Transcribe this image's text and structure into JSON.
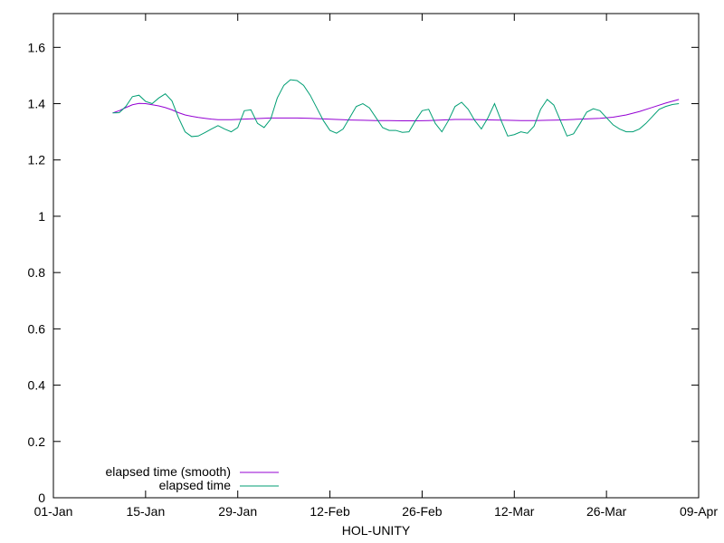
{
  "chart_data": {
    "type": "line",
    "title": "",
    "xlabel": "HOL-UNITY",
    "ylabel": "",
    "x_ticks": [
      "01-Jan",
      "15-Jan",
      "29-Jan",
      "12-Feb",
      "26-Feb",
      "12-Mar",
      "26-Mar",
      "09-Apr"
    ],
    "y_ticks": [
      "0",
      "0.2",
      "0.4",
      "0.6",
      "0.8",
      "1",
      "1.2",
      "1.4",
      "1.6"
    ],
    "ylim": [
      0,
      1.72
    ],
    "xlim": [
      "01-Jan",
      "09-Apr"
    ],
    "grid": false,
    "legend_position": "bottom-left",
    "series": [
      {
        "name": "elapsed time (smooth)",
        "color": "#9400d3",
        "x": [
          "10-Jan",
          "11-Jan",
          "12-Jan",
          "13-Jan",
          "14-Jan",
          "15-Jan",
          "16-Jan",
          "17-Jan",
          "18-Jan",
          "19-Jan",
          "20-Jan",
          "21-Jan",
          "22-Jan",
          "23-Jan",
          "24-Jan",
          "25-Jan",
          "26-Jan",
          "28-Jan",
          "30-Jan",
          "01-Feb",
          "03-Feb",
          "05-Feb",
          "07-Feb",
          "09-Feb",
          "11-Feb",
          "13-Feb",
          "15-Feb",
          "17-Feb",
          "19-Feb",
          "21-Feb",
          "23-Feb",
          "25-Feb",
          "27-Feb",
          "01-Mar",
          "03-Mar",
          "05-Mar",
          "07-Mar",
          "09-Mar",
          "11-Mar",
          "13-Mar",
          "15-Mar",
          "17-Mar",
          "19-Mar",
          "21-Mar",
          "23-Mar",
          "25-Mar",
          "27-Mar",
          "29-Mar",
          "31-Mar",
          "02-Apr",
          "04-Apr",
          "06-Apr"
        ],
        "y": [
          1.367,
          1.375,
          1.386,
          1.396,
          1.401,
          1.4,
          1.396,
          1.392,
          1.386,
          1.378,
          1.368,
          1.36,
          1.355,
          1.351,
          1.348,
          1.345,
          1.343,
          1.343,
          1.345,
          1.347,
          1.349,
          1.349,
          1.349,
          1.348,
          1.346,
          1.344,
          1.342,
          1.341,
          1.34,
          1.34,
          1.339,
          1.339,
          1.34,
          1.342,
          1.344,
          1.344,
          1.343,
          1.342,
          1.341,
          1.34,
          1.34,
          1.341,
          1.342,
          1.344,
          1.346,
          1.348,
          1.352,
          1.36,
          1.372,
          1.387,
          1.402,
          1.415
        ]
      },
      {
        "name": "elapsed time",
        "color": "#009e73",
        "x": [
          "10-Jan",
          "11-Jan",
          "12-Jan",
          "13-Jan",
          "14-Jan",
          "15-Jan",
          "16-Jan",
          "17-Jan",
          "18-Jan",
          "19-Jan",
          "20-Jan",
          "21-Jan",
          "22-Jan",
          "23-Jan",
          "24-Jan",
          "25-Jan",
          "26-Jan",
          "27-Jan",
          "28-Jan",
          "29-Jan",
          "30-Jan",
          "31-Jan",
          "01-Feb",
          "02-Feb",
          "03-Feb",
          "04-Feb",
          "05-Feb",
          "06-Feb",
          "07-Feb",
          "08-Feb",
          "09-Feb",
          "10-Feb",
          "11-Feb",
          "12-Feb",
          "13-Feb",
          "14-Feb",
          "15-Feb",
          "16-Feb",
          "17-Feb",
          "18-Feb",
          "19-Feb",
          "20-Feb",
          "21-Feb",
          "22-Feb",
          "23-Feb",
          "24-Feb",
          "25-Feb",
          "26-Feb",
          "27-Feb",
          "28-Feb",
          "01-Mar",
          "02-Mar",
          "03-Mar",
          "04-Mar",
          "05-Mar",
          "06-Mar",
          "07-Mar",
          "08-Mar",
          "09-Mar",
          "10-Mar",
          "11-Mar",
          "12-Mar",
          "13-Mar",
          "14-Mar",
          "15-Mar",
          "16-Mar",
          "17-Mar",
          "18-Mar",
          "19-Mar",
          "20-Mar",
          "21-Mar",
          "22-Mar",
          "23-Mar",
          "24-Mar",
          "25-Mar",
          "26-Mar",
          "27-Mar",
          "28-Mar",
          "29-Mar",
          "30-Mar",
          "31-Mar",
          "01-Apr",
          "02-Apr",
          "03-Apr",
          "04-Apr",
          "05-Apr",
          "06-Apr"
        ],
        "y": [
          1.367,
          1.368,
          1.39,
          1.425,
          1.43,
          1.408,
          1.4,
          1.42,
          1.435,
          1.41,
          1.35,
          1.3,
          1.283,
          1.285,
          1.297,
          1.31,
          1.322,
          1.31,
          1.3,
          1.315,
          1.375,
          1.378,
          1.33,
          1.315,
          1.345,
          1.42,
          1.465,
          1.485,
          1.482,
          1.465,
          1.43,
          1.385,
          1.34,
          1.305,
          1.295,
          1.31,
          1.35,
          1.39,
          1.4,
          1.385,
          1.35,
          1.315,
          1.305,
          1.305,
          1.298,
          1.3,
          1.34,
          1.375,
          1.38,
          1.33,
          1.3,
          1.34,
          1.39,
          1.405,
          1.38,
          1.34,
          1.31,
          1.35,
          1.4,
          1.34,
          1.285,
          1.29,
          1.3,
          1.295,
          1.32,
          1.38,
          1.415,
          1.395,
          1.34,
          1.285,
          1.293,
          1.33,
          1.37,
          1.382,
          1.375,
          1.35,
          1.325,
          1.31,
          1.3,
          1.3,
          1.31,
          1.33,
          1.355,
          1.38,
          1.39,
          1.397,
          1.4
        ]
      }
    ]
  }
}
